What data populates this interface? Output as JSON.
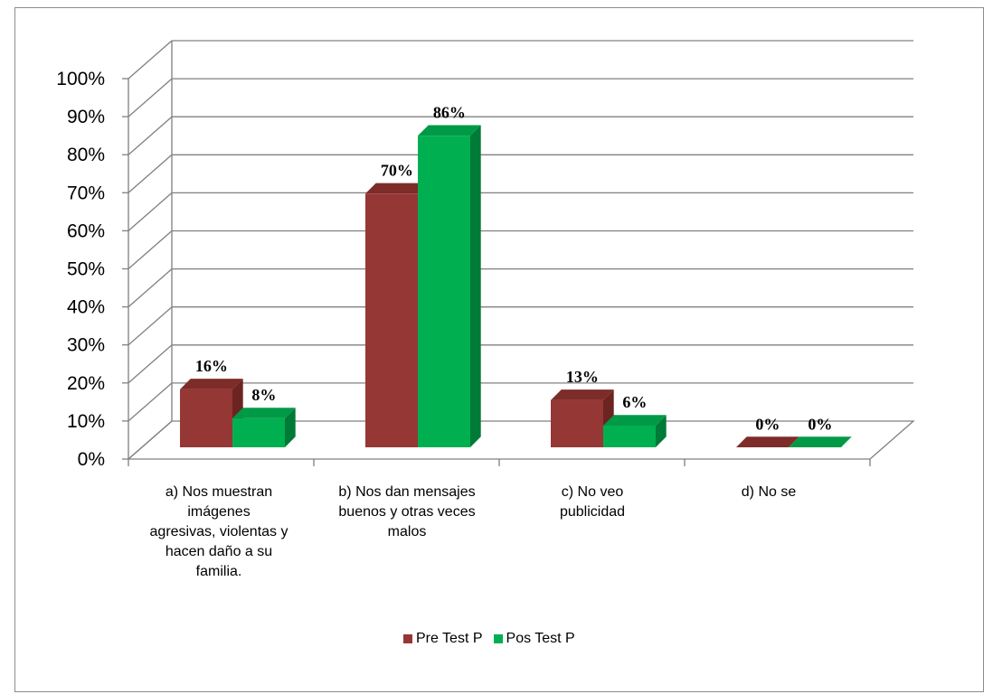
{
  "chart_data": {
    "type": "bar",
    "title": "",
    "xlabel": "",
    "ylabel": "",
    "ylim": [
      0,
      100
    ],
    "ytick_labels": [
      "0%",
      "10%",
      "20%",
      "30%",
      "40%",
      "50%",
      "60%",
      "70%",
      "80%",
      "90%",
      "100%"
    ],
    "categories": [
      "a)     Nos muestran imágenes agresivas, violentas y hacen daño a su familia.",
      "b) Nos dan mensajes buenos y otras veces malos",
      "c)     No veo publicidad",
      "d)     No se"
    ],
    "category_lines": [
      [
        "a)     Nos muestran",
        "imágenes",
        "agresivas, violentas y",
        "hacen daño a su",
        "familia."
      ],
      [
        "b) Nos dan mensajes",
        "buenos y otras veces",
        "malos"
      ],
      [
        "c)     No veo",
        "publicidad"
      ],
      [
        "d)     No se"
      ]
    ],
    "series": [
      {
        "name": "Pre Test P",
        "values": [
          16,
          70,
          13,
          0
        ],
        "labels": [
          "16%",
          "70%",
          "13%",
          "0%"
        ]
      },
      {
        "name": "Pos Test P",
        "values": [
          8,
          86,
          6,
          0
        ],
        "labels": [
          "8%",
          "86%",
          "6%",
          "0%"
        ]
      }
    ],
    "grid": true,
    "legend_position": "bottom",
    "colors": {
      "pre_front": "#953735",
      "pre_side": "#6b2422",
      "pre_top": "#7d2c2a",
      "pos_front": "#00b050",
      "pos_side": "#007a37",
      "pos_top": "#009a46",
      "grid": "#808080"
    }
  }
}
